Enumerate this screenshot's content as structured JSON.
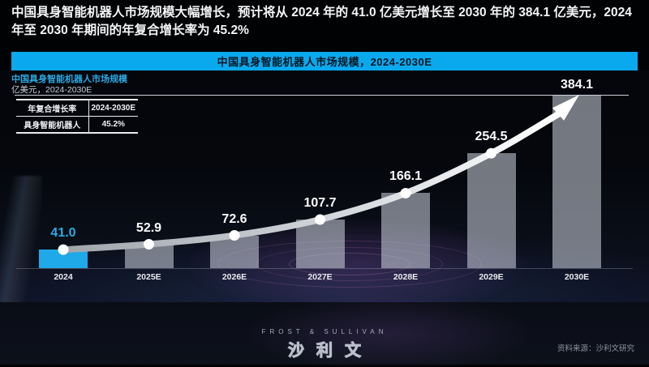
{
  "headline": "中国具身智能机器人市场规模大幅增长，预计将从 2024 年的 41.0 亿美元增长至 2030 年的 384.1 亿美元，2024 年至 2030 年期间的年复合增长率为 45.2%",
  "banner": {
    "title": "中国具身智能机器人市场规模，2024-2030E"
  },
  "chart_header": {
    "title": "中国具身智能机器人市场规模",
    "unit": "亿美元，2024-2030E"
  },
  "legend_table": {
    "header": [
      "年复合增长率",
      "2024-2030E"
    ],
    "rows": [
      [
        "具身智能机器人",
        "45.2%"
      ]
    ]
  },
  "chart_data": {
    "type": "bar",
    "title": "中国具身智能机器人市场规模，2024-2030E",
    "ylabel": "亿美元",
    "categories": [
      "2024",
      "2025E",
      "2026E",
      "2027E",
      "2028E",
      "2029E",
      "2030E"
    ],
    "values": [
      41.0,
      52.9,
      72.6,
      107.7,
      166.1,
      254.5,
      384.1
    ],
    "highlight_index": 0,
    "cagr": {
      "label": "年复合增长率",
      "period": "2024-2030E",
      "series": "具身智能机器人",
      "value": "45.2%"
    },
    "ylim": [
      0,
      384.1
    ],
    "grid": false,
    "legend_position": "none",
    "trendline": "smooth curve through bar tops ending in arrow at 2030E"
  },
  "footer": {
    "brand_en": "FROST & SULLIVAN",
    "brand_cn": "沙利文",
    "source": "资料来源：沙利文研究"
  },
  "colors": {
    "accent": "#29ABE2",
    "banner": "#0AA9EE",
    "bar_highlight": "#1FA9E8",
    "bar_default": "rgba(208,214,224,0.55)",
    "curve_start": "#9FA4AB",
    "curve_end": "#FFFFFF",
    "value_label": "#FAFBFC"
  }
}
